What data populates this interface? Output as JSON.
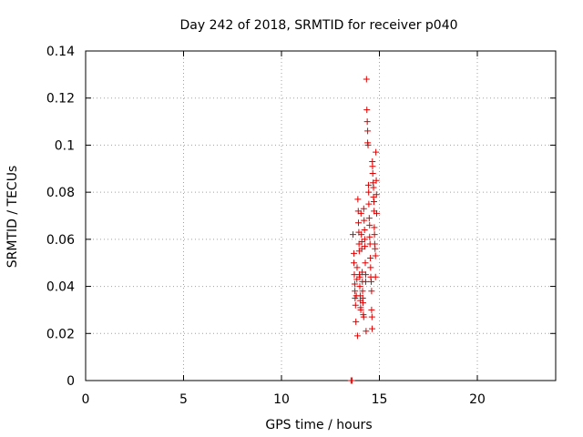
{
  "chart_data": {
    "type": "scatter",
    "title": "Day 242 of 2018, SRMTID for receiver p040",
    "xlabel": "GPS time / hours",
    "ylabel": "SRMTID / TECUs",
    "xlim": [
      0,
      24
    ],
    "ylim": [
      0,
      0.14
    ],
    "x_ticks": [
      0,
      5,
      10,
      15,
      20
    ],
    "x_tick_labels": [
      "0",
      "5",
      "10",
      "15",
      "20"
    ],
    "y_ticks": [
      0,
      0.02,
      0.04,
      0.06,
      0.08,
      0.1,
      0.12,
      0.14
    ],
    "y_tick_labels": [
      "0",
      "0.02",
      "0.04",
      "0.06",
      "0.08",
      "0.1",
      "0.12",
      "0.14"
    ],
    "grid": true,
    "marker": "+",
    "color": "#e00000",
    "series": [
      {
        "name": "p040",
        "points": [
          [
            13.55,
            0.0
          ],
          [
            13.6,
            0.0
          ],
          [
            13.65,
            0.062
          ],
          [
            13.7,
            0.054
          ],
          [
            13.7,
            0.05
          ],
          [
            13.72,
            0.045
          ],
          [
            13.74,
            0.041
          ],
          [
            13.75,
            0.038
          ],
          [
            13.76,
            0.035
          ],
          [
            13.78,
            0.032
          ],
          [
            13.8,
            0.025
          ],
          [
            13.82,
            0.036
          ],
          [
            13.85,
            0.043
          ],
          [
            13.86,
            0.048
          ],
          [
            13.88,
            0.019
          ],
          [
            13.9,
            0.077
          ],
          [
            13.92,
            0.072
          ],
          [
            13.93,
            0.067
          ],
          [
            13.95,
            0.063
          ],
          [
            13.96,
            0.058
          ],
          [
            13.97,
            0.055
          ],
          [
            13.98,
            0.045
          ],
          [
            14.0,
            0.044
          ],
          [
            14.0,
            0.04
          ],
          [
            14.02,
            0.036
          ],
          [
            14.03,
            0.034
          ],
          [
            14.04,
            0.031
          ],
          [
            14.05,
            0.03
          ],
          [
            14.06,
            0.071
          ],
          [
            14.08,
            0.062
          ],
          [
            14.1,
            0.059
          ],
          [
            14.1,
            0.056
          ],
          [
            14.12,
            0.046
          ],
          [
            14.13,
            0.042
          ],
          [
            14.14,
            0.038
          ],
          [
            14.15,
            0.035
          ],
          [
            14.16,
            0.033
          ],
          [
            14.18,
            0.028
          ],
          [
            14.2,
            0.027
          ],
          [
            14.2,
            0.073
          ],
          [
            14.22,
            0.068
          ],
          [
            14.24,
            0.064
          ],
          [
            14.25,
            0.06
          ],
          [
            14.26,
            0.057
          ],
          [
            14.28,
            0.05
          ],
          [
            14.3,
            0.045
          ],
          [
            14.3,
            0.042
          ],
          [
            14.32,
            0.021
          ],
          [
            14.34,
            0.128
          ],
          [
            14.36,
            0.115
          ],
          [
            14.38,
            0.11
          ],
          [
            14.4,
            0.106
          ],
          [
            14.4,
            0.101
          ],
          [
            14.42,
            0.1
          ],
          [
            14.44,
            0.083
          ],
          [
            14.45,
            0.08
          ],
          [
            14.46,
            0.075
          ],
          [
            14.48,
            0.069
          ],
          [
            14.5,
            0.066
          ],
          [
            14.5,
            0.061
          ],
          [
            14.52,
            0.058
          ],
          [
            14.54,
            0.052
          ],
          [
            14.55,
            0.048
          ],
          [
            14.56,
            0.044
          ],
          [
            14.58,
            0.042
          ],
          [
            14.6,
            0.038
          ],
          [
            14.6,
            0.03
          ],
          [
            14.62,
            0.027
          ],
          [
            14.63,
            0.022
          ],
          [
            14.64,
            0.093
          ],
          [
            14.65,
            0.091
          ],
          [
            14.66,
            0.088
          ],
          [
            14.68,
            0.084
          ],
          [
            14.7,
            0.082
          ],
          [
            14.7,
            0.078
          ],
          [
            14.72,
            0.076
          ],
          [
            14.73,
            0.072
          ],
          [
            14.74,
            0.065
          ],
          [
            14.75,
            0.062
          ],
          [
            14.76,
            0.058
          ],
          [
            14.78,
            0.056
          ],
          [
            14.8,
            0.053
          ],
          [
            14.8,
            0.044
          ],
          [
            14.82,
            0.097
          ],
          [
            14.84,
            0.085
          ],
          [
            14.85,
            0.079
          ],
          [
            14.86,
            0.071
          ]
        ]
      }
    ]
  }
}
